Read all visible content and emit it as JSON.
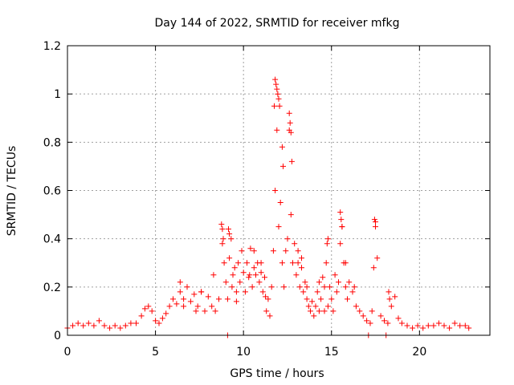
{
  "chart_data": {
    "type": "scatter",
    "title": "Day 144 of 2022, SRMTID for receiver mfkg",
    "xlabel": "GPS time / hours",
    "ylabel": "SRMTID / TECUs",
    "xlim": [
      0,
      24
    ],
    "ylim": [
      0,
      1.2
    ],
    "xticks": [
      0,
      5,
      10,
      15,
      20
    ],
    "xtick_labels": [
      "0",
      "5",
      "10",
      "15",
      "20"
    ],
    "yticks": [
      0,
      0.2,
      0.4,
      0.6,
      0.8,
      1.0,
      1.2
    ],
    "ytick_labels": [
      "0",
      "0.2",
      "0.4",
      "0.6",
      "0.8",
      "1",
      "1.2"
    ],
    "grid": true,
    "marker": "plus",
    "color": "#ff0000",
    "series": [
      {
        "name": "SRMTID",
        "x": [
          0.0,
          0.3,
          0.6,
          0.9,
          1.2,
          1.5,
          1.8,
          2.1,
          2.4,
          2.7,
          3.0,
          3.3,
          3.6,
          3.9,
          4.2,
          4.4,
          4.6,
          4.8,
          5.0,
          5.2,
          5.4,
          5.6,
          5.8,
          6.0,
          6.2,
          6.4,
          6.6,
          6.8,
          7.0,
          7.2,
          7.4,
          7.6,
          7.8,
          8.0,
          8.2,
          8.4,
          8.6,
          8.8,
          8.9,
          9.0,
          9.1,
          9.2,
          9.3,
          9.4,
          9.5,
          9.6,
          9.7,
          9.8,
          9.9,
          10.0,
          10.1,
          10.2,
          10.3,
          10.4,
          10.5,
          10.6,
          10.7,
          10.8,
          10.9,
          11.0,
          11.1,
          11.2,
          11.3,
          11.4,
          11.5,
          11.6,
          11.7,
          11.8,
          11.9,
          12.0,
          12.1,
          12.2,
          12.3,
          12.4,
          12.5,
          12.6,
          12.7,
          12.8,
          12.9,
          13.0,
          13.1,
          13.2,
          13.3,
          13.4,
          13.5,
          13.6,
          13.7,
          13.8,
          13.9,
          14.0,
          14.1,
          14.2,
          14.3,
          14.4,
          14.5,
          14.6,
          14.7,
          14.8,
          14.9,
          15.0,
          15.1,
          15.2,
          15.3,
          15.4,
          15.5,
          15.6,
          15.7,
          15.8,
          15.9,
          16.0,
          16.2,
          16.4,
          16.6,
          16.8,
          17.0,
          17.2,
          17.3,
          17.4,
          17.5,
          17.6,
          17.8,
          18.0,
          18.2,
          18.4,
          18.6,
          18.8,
          19.0,
          19.3,
          19.6,
          19.9,
          20.2,
          20.5,
          20.8,
          21.1,
          21.4,
          21.7,
          22.0,
          22.3,
          22.6,
          22.8,
          9.1,
          17.1,
          18.1,
          11.8,
          11.85,
          11.9,
          11.95,
          12.0,
          12.05,
          12.6,
          12.65,
          12.7,
          12.75,
          8.75,
          8.8,
          9.15,
          9.2,
          15.5,
          15.55,
          15.6,
          17.45,
          17.5,
          14.75,
          14.8,
          8.85,
          11.75,
          12.2,
          12.25,
          13.1,
          10.6,
          6.4,
          6.6,
          7.3,
          7.6,
          8.3,
          9.35,
          9.6,
          10.35,
          11.0,
          11.25,
          13.3,
          13.6,
          14.3,
          14.6,
          15.8,
          16.3,
          18.25,
          18.3
        ],
        "y": [
          0.03,
          0.04,
          0.05,
          0.04,
          0.05,
          0.04,
          0.06,
          0.04,
          0.03,
          0.04,
          0.03,
          0.04,
          0.05,
          0.05,
          0.08,
          0.11,
          0.12,
          0.1,
          0.06,
          0.05,
          0.07,
          0.09,
          0.12,
          0.15,
          0.13,
          0.18,
          0.15,
          0.2,
          0.14,
          0.17,
          0.12,
          0.18,
          0.1,
          0.16,
          0.12,
          0.1,
          0.15,
          0.38,
          0.3,
          0.22,
          0.15,
          0.32,
          0.4,
          0.25,
          0.28,
          0.14,
          0.3,
          0.22,
          0.35,
          0.26,
          0.18,
          0.3,
          0.24,
          0.36,
          0.2,
          0.28,
          0.25,
          0.3,
          0.22,
          0.26,
          0.18,
          0.24,
          0.1,
          0.15,
          0.08,
          0.2,
          0.35,
          0.6,
          0.85,
          0.45,
          0.55,
          0.3,
          0.2,
          0.35,
          0.4,
          0.85,
          0.5,
          0.3,
          0.38,
          0.25,
          0.35,
          0.2,
          0.32,
          0.18,
          0.22,
          0.15,
          0.12,
          0.1,
          0.14,
          0.08,
          0.12,
          0.18,
          0.1,
          0.15,
          0.24,
          0.2,
          0.3,
          0.12,
          0.2,
          0.15,
          0.1,
          0.25,
          0.18,
          0.22,
          0.38,
          0.45,
          0.3,
          0.2,
          0.15,
          0.22,
          0.18,
          0.12,
          0.1,
          0.08,
          0.06,
          0.05,
          0.1,
          0.28,
          0.45,
          0.32,
          0.08,
          0.06,
          0.05,
          0.12,
          0.16,
          0.07,
          0.05,
          0.04,
          0.03,
          0.04,
          0.03,
          0.04,
          0.04,
          0.05,
          0.04,
          0.03,
          0.05,
          0.04,
          0.04,
          0.03,
          0.0,
          0.0,
          0.0,
          1.06,
          1.04,
          1.02,
          1.0,
          0.98,
          0.95,
          0.92,
          0.88,
          0.84,
          0.72,
          0.46,
          0.44,
          0.44,
          0.42,
          0.51,
          0.48,
          0.45,
          0.48,
          0.47,
          0.38,
          0.4,
          0.4,
          0.95,
          0.78,
          0.7,
          0.3,
          0.35,
          0.22,
          0.12,
          0.1,
          0.18,
          0.25,
          0.2,
          0.18,
          0.25,
          0.3,
          0.16,
          0.28,
          0.2,
          0.22,
          0.1,
          0.3,
          0.2,
          0.18,
          0.15
        ]
      }
    ]
  }
}
